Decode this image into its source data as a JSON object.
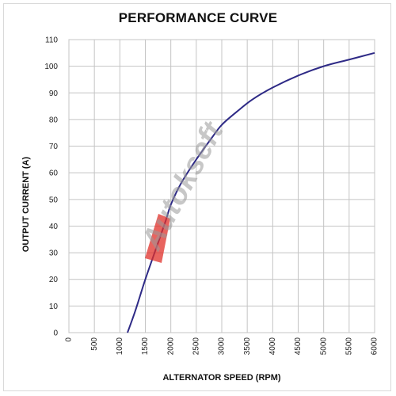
{
  "chart_data": {
    "type": "line",
    "title": "PERFORMANCE CURVE",
    "xlabel": "ALTERNATOR SPEED (RPM)",
    "ylabel": "OUTPUT CURRENT (A)",
    "xlim": [
      0,
      6000
    ],
    "ylim": [
      0,
      110
    ],
    "xticks": [
      0,
      500,
      1000,
      1500,
      2000,
      2500,
      3000,
      3500,
      4000,
      4500,
      5000,
      5500,
      6000
    ],
    "yticks": [
      0,
      10,
      20,
      30,
      40,
      50,
      60,
      70,
      80,
      90,
      100,
      110
    ],
    "grid": true,
    "series": [
      {
        "color": "#2e2a86",
        "x": [
          1150,
          1300,
          1500,
          1700,
          1900,
          2000,
          2200,
          2500,
          2800,
          3000,
          3300,
          3600,
          4000,
          4500,
          5000,
          5500,
          6000
        ],
        "y": [
          0,
          8,
          20,
          31,
          42,
          48,
          56,
          65,
          73,
          78,
          83,
          87.5,
          92,
          96.5,
          100,
          102.5,
          105
        ]
      }
    ]
  },
  "watermark": "Autokseft"
}
